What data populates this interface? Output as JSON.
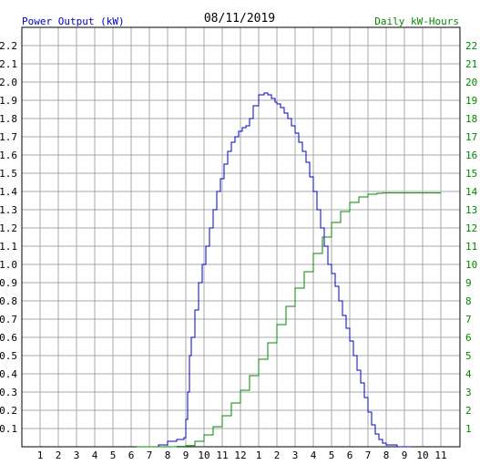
{
  "chart_data": {
    "type": "line",
    "title": "08/11/2019",
    "left_axis_label": "Power Output (kW)",
    "right_axis_label": "Daily kW-Hours",
    "x_tick_labels": [
      "1",
      "2",
      "3",
      "4",
      "5",
      "6",
      "7",
      "8",
      "9",
      "10",
      "11",
      "12",
      "1",
      "2",
      "3",
      "4",
      "5",
      "6",
      "7",
      "8",
      "9",
      "10",
      "11"
    ],
    "left_ylim": [
      0,
      2.3
    ],
    "left_tick_labels": [
      "0.1",
      "0.2",
      "0.3",
      "0.4",
      "0.5",
      "0.6",
      "0.7",
      "0.8",
      "0.9",
      "1.0",
      "1.1",
      "1.2",
      "1.3",
      "1.4",
      "1.5",
      "1.6",
      "1.7",
      "1.8",
      "1.9",
      "2.0",
      "2.1",
      "2.2"
    ],
    "right_ylim": [
      0,
      23
    ],
    "right_tick_labels": [
      "1",
      "2",
      "3",
      "4",
      "5",
      "6",
      "7",
      "8",
      "9",
      "10",
      "11",
      "12",
      "13",
      "14",
      "15",
      "16",
      "17",
      "18",
      "19",
      "20",
      "21",
      "22"
    ],
    "grid": true,
    "colors": {
      "power": "#0000cc",
      "energy": "#008800",
      "title": "#000000",
      "grid": "#aaaaaa"
    },
    "series": [
      {
        "axis": "left",
        "x_hours": [
          6.3,
          7.0,
          7.5,
          8.0,
          8.5,
          8.9,
          9.0,
          9.1,
          9.2,
          9.3,
          9.5,
          9.7,
          9.9,
          10.1,
          10.3,
          10.5,
          10.7,
          10.9,
          11.1,
          11.3,
          11.5,
          11.7,
          11.9,
          12.1,
          12.3,
          12.5,
          12.7,
          13.0,
          13.3,
          13.5,
          13.7,
          13.9,
          14.0,
          14.2,
          14.4,
          14.6,
          14.8,
          15.0,
          15.2,
          15.4,
          15.6,
          15.8,
          16.0,
          16.2,
          16.4,
          16.6,
          16.8,
          17.0,
          17.2,
          17.4,
          17.6,
          17.8,
          18.0,
          18.2,
          18.4,
          18.6,
          18.8,
          19.0,
          19.2,
          19.4,
          19.6,
          19.8,
          20.0,
          20.3,
          20.6,
          21.0,
          21.4
        ],
        "values": [
          0.0,
          0.0,
          0.01,
          0.03,
          0.04,
          0.05,
          0.15,
          0.3,
          0.5,
          0.6,
          0.75,
          0.9,
          1.0,
          1.1,
          1.2,
          1.3,
          1.4,
          1.47,
          1.55,
          1.62,
          1.67,
          1.7,
          1.73,
          1.75,
          1.76,
          1.8,
          1.87,
          1.93,
          1.94,
          1.93,
          1.91,
          1.89,
          1.88,
          1.86,
          1.83,
          1.8,
          1.76,
          1.72,
          1.67,
          1.62,
          1.56,
          1.48,
          1.4,
          1.3,
          1.2,
          1.1,
          1.0,
          0.95,
          0.88,
          0.8,
          0.72,
          0.65,
          0.58,
          0.5,
          0.42,
          0.35,
          0.27,
          0.19,
          0.12,
          0.07,
          0.04,
          0.02,
          0.01,
          0.01,
          0.0,
          0.0,
          0.0
        ]
      },
      {
        "axis": "right",
        "x_hours": [
          6.3,
          8.5,
          9.0,
          9.5,
          10.0,
          10.5,
          11.0,
          11.5,
          12.0,
          12.5,
          13.0,
          13.5,
          14.0,
          14.5,
          15.0,
          15.5,
          16.0,
          16.5,
          17.0,
          17.5,
          18.0,
          18.5,
          19.0,
          19.5,
          19.8,
          20.0,
          20.5,
          21.0,
          21.5,
          22.0,
          23.0
        ],
        "values": [
          0.0,
          0.02,
          0.06,
          0.3,
          0.65,
          1.1,
          1.7,
          2.4,
          3.1,
          3.9,
          4.8,
          5.7,
          6.7,
          7.7,
          8.7,
          9.6,
          10.6,
          11.5,
          12.3,
          12.9,
          13.4,
          13.7,
          13.85,
          13.9,
          13.92,
          13.92,
          13.92,
          13.92,
          13.92,
          13.92,
          13.92
        ]
      }
    ]
  }
}
